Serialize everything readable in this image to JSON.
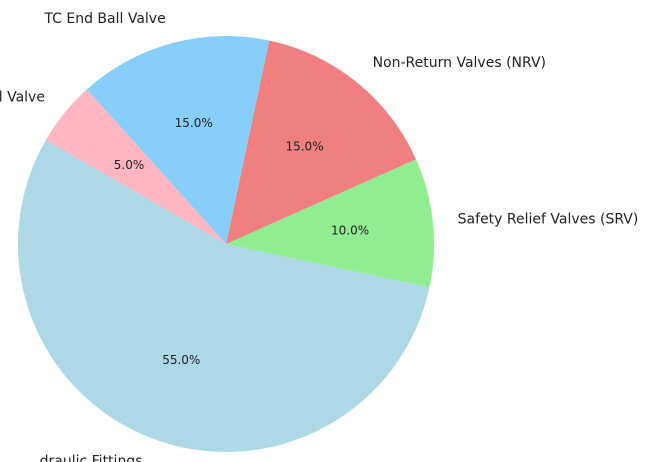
{
  "chart_data": {
    "type": "pie",
    "title": "",
    "start_angle_deg": 150,
    "direction": "counterclockwise",
    "slices": [
      {
        "label": "Hydraulic Fittings",
        "visible_label": "draulic Fittings",
        "value": 55.0,
        "pct_label": "55.0%",
        "color": "#add8e6"
      },
      {
        "label": "Safety Relief Valves (SRV)",
        "visible_label": "Safety Relief Valves (SRV)",
        "value": 10.0,
        "pct_label": "10.0%",
        "color": "#90ee90"
      },
      {
        "label": "Non-Return Valves (NRV)",
        "visible_label": "Non-Return Valves (NRV)",
        "value": 15.0,
        "pct_label": "15.0%",
        "color": "#f08080"
      },
      {
        "label": "TC End Ball Valve",
        "visible_label": "TC End Ball Valve",
        "value": 15.0,
        "pct_label": "15.0%",
        "color": "#87cefa"
      },
      {
        "label": "Ball Valve",
        "visible_label": "Ball Valve",
        "value": 5.0,
        "pct_label": "5.0%",
        "color": "#ffb6c1"
      }
    ]
  }
}
